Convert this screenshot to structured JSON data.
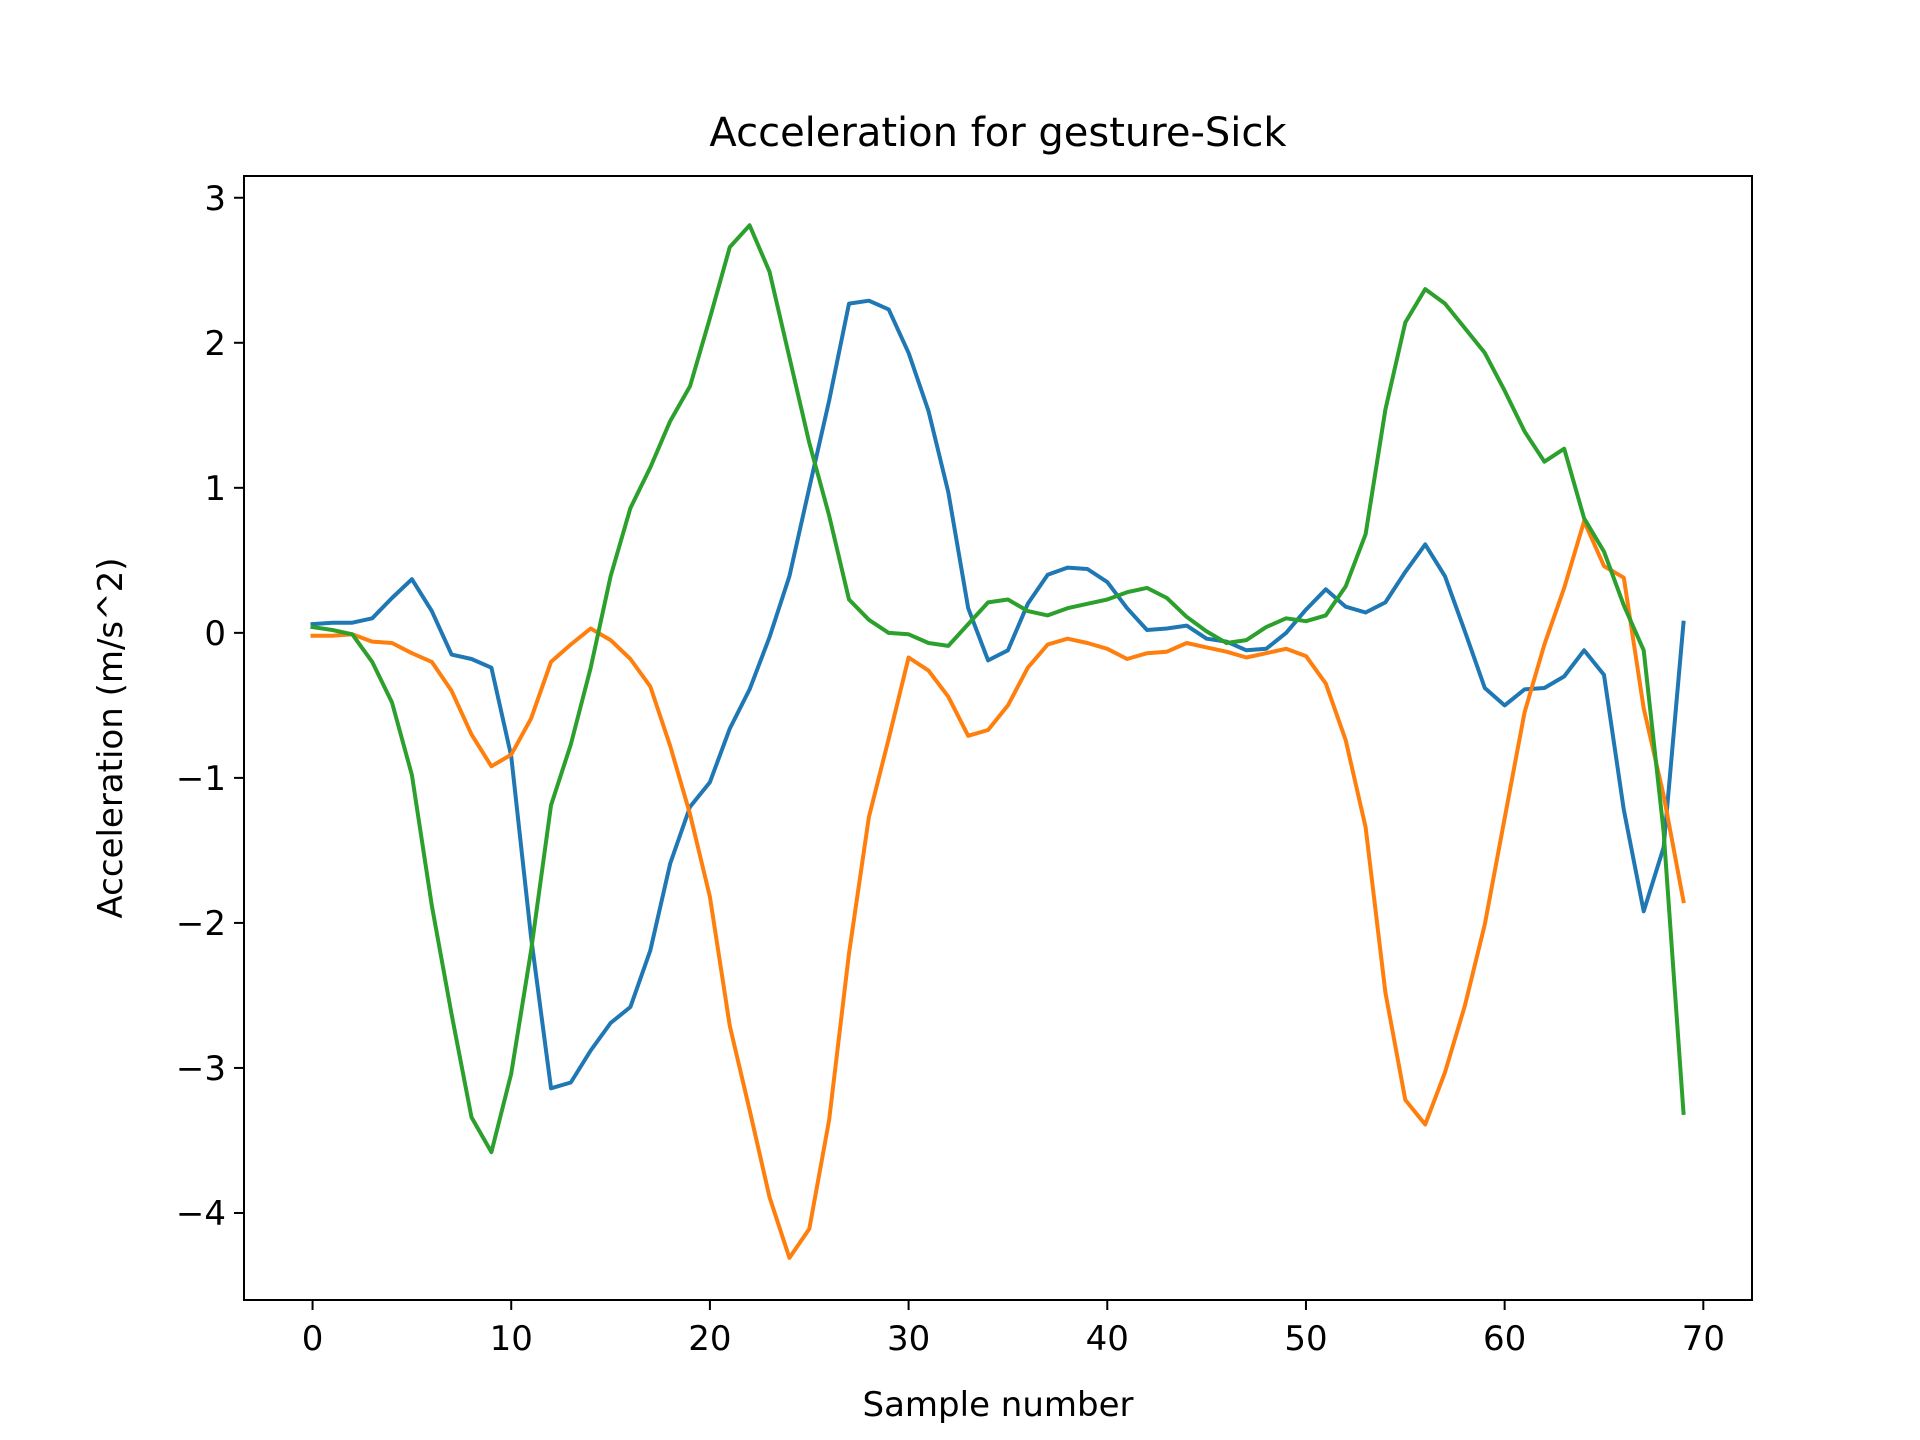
{
  "chart_data": {
    "type": "line",
    "title": "Acceleration for gesture-Sick",
    "xlabel": "Sample number",
    "ylabel": "Acceleration (m/s^2)",
    "xlim": [
      -3.45,
      72.45
    ],
    "ylim": [
      -4.6,
      3.15
    ],
    "xticks": [
      0,
      10,
      20,
      30,
      40,
      50,
      60,
      70
    ],
    "xtick_labels": [
      "0",
      "10",
      "20",
      "30",
      "40",
      "50",
      "60",
      "70"
    ],
    "yticks": [
      3,
      2,
      1,
      0,
      -1,
      -2,
      -3,
      -4
    ],
    "ytick_labels": [
      "3",
      "2",
      "1",
      "0",
      "−1",
      "−2",
      "−3",
      "−4"
    ],
    "grid": false,
    "x": [
      0,
      1,
      2,
      3,
      4,
      5,
      6,
      7,
      8,
      9,
      10,
      11,
      12,
      13,
      14,
      15,
      16,
      17,
      18,
      19,
      20,
      21,
      22,
      23,
      24,
      25,
      26,
      27,
      28,
      29,
      30,
      31,
      32,
      33,
      34,
      35,
      36,
      37,
      38,
      39,
      40,
      41,
      42,
      43,
      44,
      45,
      46,
      47,
      48,
      49,
      50,
      51,
      52,
      53,
      54,
      55,
      56,
      57,
      58,
      59,
      60,
      61,
      62,
      63,
      64,
      65,
      66,
      67,
      68,
      69
    ],
    "series": [
      {
        "color": "#1f77b4",
        "values": [
          0.06,
          0.07,
          0.07,
          0.1,
          0.24,
          0.37,
          0.15,
          -0.15,
          -0.18,
          -0.24,
          -0.85,
          -2.1,
          -3.14,
          -3.1,
          -2.88,
          -2.69,
          -2.58,
          -2.19,
          -1.59,
          -1.2,
          -1.03,
          -0.66,
          -0.39,
          -0.03,
          0.39,
          1.0,
          1.6,
          2.27,
          2.29,
          2.23,
          1.93,
          1.53,
          0.97,
          0.17,
          -0.19,
          -0.12,
          0.2,
          0.4,
          0.45,
          0.44,
          0.35,
          0.17,
          0.02,
          0.03,
          0.05,
          -0.04,
          -0.06,
          -0.12,
          -0.11,
          0.0,
          0.16,
          0.3,
          0.18,
          0.14,
          0.21,
          0.42,
          0.61,
          0.39,
          0.01,
          -0.38,
          -0.5,
          -0.39,
          -0.38,
          -0.3,
          -0.12,
          -0.29,
          -1.22,
          -1.92,
          -1.48,
          0.07
        ]
      },
      {
        "color": "#ff7f0e",
        "values": [
          -0.02,
          -0.02,
          -0.01,
          -0.06,
          -0.07,
          -0.14,
          -0.2,
          -0.4,
          -0.7,
          -0.92,
          -0.84,
          -0.59,
          -0.2,
          -0.08,
          0.03,
          -0.05,
          -0.18,
          -0.37,
          -0.78,
          -1.25,
          -1.82,
          -2.71,
          -3.29,
          -3.89,
          -4.31,
          -4.11,
          -3.36,
          -2.21,
          -1.27,
          -0.73,
          -0.17,
          -0.26,
          -0.44,
          -0.71,
          -0.67,
          -0.5,
          -0.24,
          -0.08,
          -0.04,
          -0.07,
          -0.11,
          -0.18,
          -0.14,
          -0.13,
          -0.07,
          -0.1,
          -0.13,
          -0.17,
          -0.14,
          -0.11,
          -0.16,
          -0.35,
          -0.74,
          -1.34,
          -2.48,
          -3.22,
          -3.39,
          -3.03,
          -2.57,
          -2.01,
          -1.28,
          -0.55,
          -0.08,
          0.31,
          0.77,
          0.46,
          0.38,
          -0.52,
          -1.12,
          -1.85
        ]
      },
      {
        "color": "#2ca02c",
        "values": [
          0.04,
          0.02,
          -0.01,
          -0.2,
          -0.48,
          -0.98,
          -1.88,
          -2.63,
          -3.34,
          -3.58,
          -3.04,
          -2.19,
          -1.19,
          -0.77,
          -0.24,
          0.39,
          0.86,
          1.14,
          1.46,
          1.7,
          2.17,
          2.66,
          2.81,
          2.49,
          1.9,
          1.31,
          0.81,
          0.23,
          0.09,
          0.0,
          -0.01,
          -0.07,
          -0.09,
          0.06,
          0.21,
          0.23,
          0.15,
          0.12,
          0.17,
          0.2,
          0.23,
          0.28,
          0.31,
          0.24,
          0.11,
          0.01,
          -0.07,
          -0.05,
          0.04,
          0.1,
          0.08,
          0.12,
          0.32,
          0.68,
          1.54,
          2.14,
          2.37,
          2.27,
          2.1,
          1.93,
          1.67,
          1.39,
          1.18,
          1.27,
          0.79,
          0.56,
          0.19,
          -0.12,
          -1.37,
          -3.31
        ]
      }
    ]
  }
}
